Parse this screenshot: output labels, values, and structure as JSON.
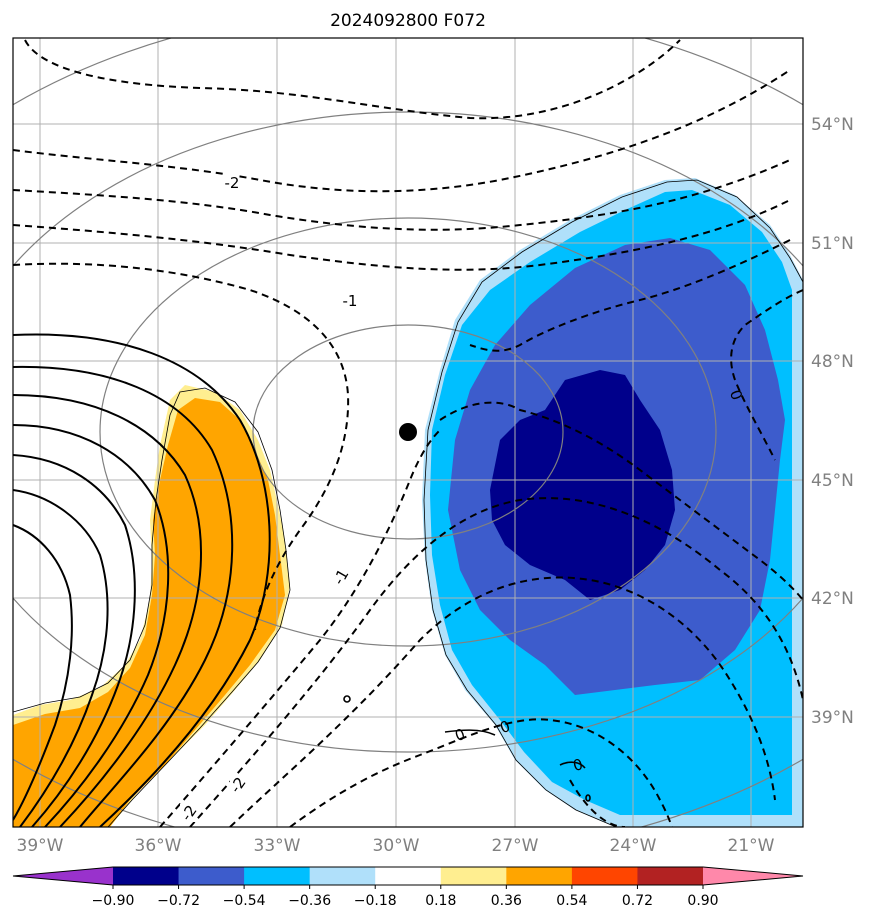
{
  "title": "2024092800 F072",
  "map": {
    "lat_labels": [
      "54°N",
      "51°N",
      "48°N",
      "45°N",
      "42°N",
      "39°N"
    ],
    "lon_labels": [
      "39°W",
      "36°W",
      "33°W",
      "30°W",
      "27°W",
      "24°W",
      "21°W"
    ],
    "contour_labels": [
      "-2",
      "-1",
      "-1",
      "-2",
      "-2",
      "0",
      "0",
      "0",
      "0"
    ],
    "center_marker": "black-dot",
    "colors": {
      "positive_light": "#ffee90",
      "positive": "#ffa500",
      "negative_light": "#b0e0fa",
      "negative": "#00bfff",
      "negative_strong": "#3d5ccc",
      "negative_strongest": "#00008b"
    }
  },
  "colorbar": {
    "ticks": [
      "−0.90",
      "−0.72",
      "−0.54",
      "−0.36",
      "−0.18",
      "0.18",
      "0.36",
      "0.54",
      "0.72",
      "0.90"
    ],
    "colors": [
      "#9932cc",
      "#00008b",
      "#3d5ccc",
      "#00bfff",
      "#b0e0fa",
      "#ffffff",
      "#ffee90",
      "#ffa500",
      "#ff4500",
      "#b22222",
      "#ff88aa"
    ]
  }
}
